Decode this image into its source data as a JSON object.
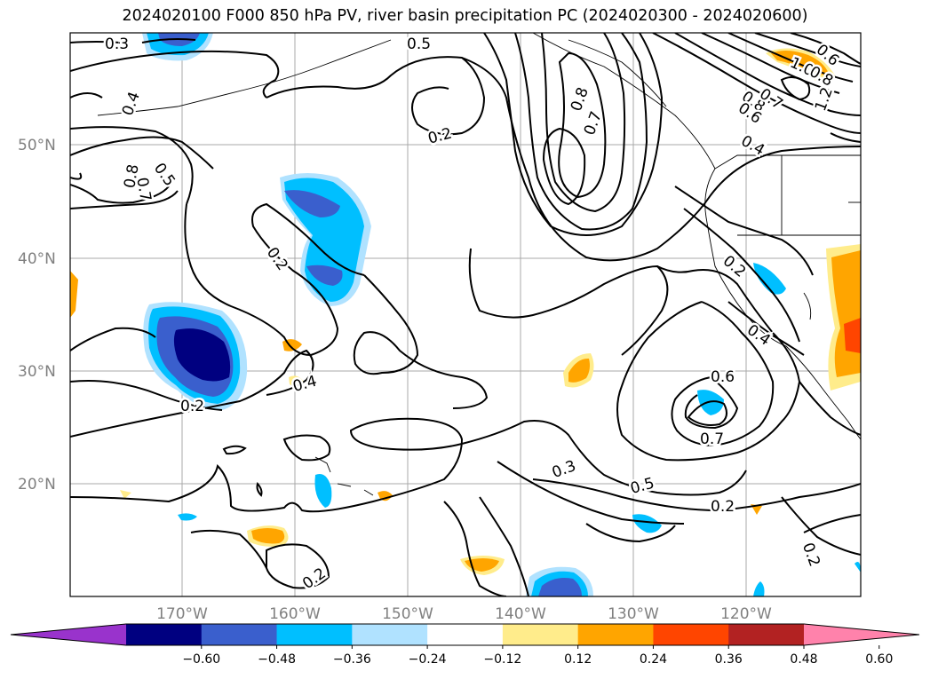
{
  "title": "2024020100 F000 850 hPa PV, river basin precipitation PC (2024020300 - 2024020600)",
  "lat_labels": [
    "50°N",
    "40°N",
    "30°N",
    "20°N"
  ],
  "lon_labels": [
    "170°W",
    "160°W",
    "150°W",
    "140°W",
    "130°W",
    "120°W"
  ],
  "colorbar": {
    "colors": [
      "#9933cc",
      "#000080",
      "#3a5fcd",
      "#00bfff",
      "#b0e2ff",
      "#ffffff",
      "#ffec8b",
      "#ffa500",
      "#ff4500",
      "#b22222",
      "#ff82ab"
    ],
    "tick_labels": [
      "−0.60",
      "−0.48",
      "−0.36",
      "−0.24",
      "−0.12",
      "0.12",
      "0.24",
      "0.36",
      "0.48",
      "0.60"
    ]
  },
  "contour_labels": [
    "0.3",
    "0.5",
    "0.4",
    "0.2",
    "0.8",
    "0.7",
    "0.5",
    "0.8",
    "0.7",
    "0.6",
    "1.0",
    "0.8",
    "1.2",
    "0.8",
    "0.6",
    "0.7",
    "0.4",
    "0.2",
    "0.2",
    "0.4",
    "0.2",
    "0.4",
    "0.6",
    "0.7",
    "0.3",
    "0.5",
    "0.2",
    "0.2",
    "0.2"
  ]
}
